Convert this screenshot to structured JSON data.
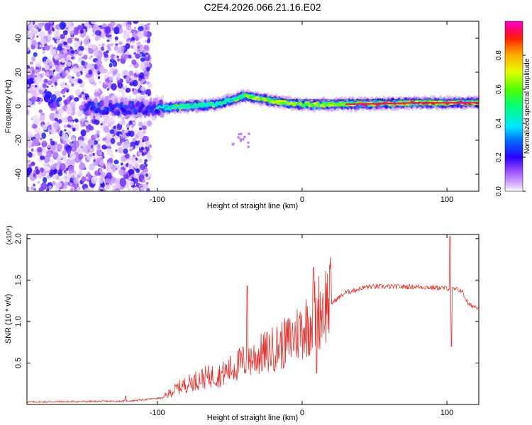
{
  "title": "C2E4.2026.066.21.16.E02",
  "chart_data": [
    {
      "type": "heatmap",
      "name": "spectrogram",
      "xlabel": "Height of straight line (km)",
      "ylabel": "Frequency (Hz)",
      "xlim": [
        -190,
        122
      ],
      "ylim": [
        -50,
        50
      ],
      "xticks": [
        -100,
        0,
        100
      ],
      "xtick_labels": [
        "-100",
        "0",
        "100"
      ],
      "yticks": [
        -40,
        -20,
        0,
        20,
        40
      ],
      "ytick_labels": [
        "-40",
        "-20",
        "0",
        "20",
        "40"
      ],
      "colorbar": {
        "label": "Normalized spectral amplitude",
        "ticks": [
          0.0,
          0.2,
          0.4,
          0.6,
          0.8
        ],
        "tick_labels": [
          "0.0",
          "0.2",
          "0.4",
          "0.6",
          "0.8"
        ],
        "range": [
          0,
          1
        ],
        "colormap": [
          "#ffffff",
          "#b57cff",
          "#6f00ff",
          "#1010ff",
          "#00b4ff",
          "#00ffc8",
          "#00ff3c",
          "#a0ff00",
          "#ffff00",
          "#ffa000",
          "#ff2000",
          "#ff00c8",
          "#ffffff"
        ]
      },
      "ridge": {
        "description_x": [
          -100,
          -80,
          -60,
          -40,
          -20,
          0,
          20,
          50,
          80,
          100,
          122
        ],
        "frequency_y": [
          -1,
          0,
          1,
          6,
          3,
          1,
          1,
          1.5,
          2,
          2,
          2
        ]
      }
    },
    {
      "type": "line",
      "name": "snr",
      "xlabel": "Height of straight line (km)",
      "ylabel": "SNR (10 * v/v)",
      "scale_label": "(x10⁴)",
      "xlim": [
        -190,
        122
      ],
      "ylim": [
        0,
        2.05
      ],
      "xticks": [
        -100,
        0,
        100
      ],
      "xtick_labels": [
        "-100",
        "0",
        "100"
      ],
      "yticks": [
        0.5,
        1.0,
        1.5,
        2.0
      ],
      "ytick_labels": [
        "0.5",
        "1.0",
        "1.5",
        "2.0"
      ],
      "color": "#e8302a",
      "spikes": [
        {
          "x": -122,
          "y": 0.1
        },
        {
          "x": -38,
          "y": 1.43
        },
        {
          "x": 8,
          "y": 1.65
        },
        {
          "x": 10,
          "y": 0.38
        },
        {
          "x": 102,
          "y": 2.03
        },
        {
          "x": 103,
          "y": 0.7
        }
      ],
      "envelope_x": [
        -190,
        -120,
        -96,
        -85,
        -70,
        -55,
        -40,
        -25,
        -10,
        5,
        15,
        30,
        45,
        60,
        80,
        100,
        110,
        115,
        122
      ],
      "envelope_y": [
        0.03,
        0.04,
        0.08,
        0.2,
        0.3,
        0.35,
        0.5,
        0.6,
        0.72,
        0.95,
        1.15,
        1.35,
        1.42,
        1.42,
        1.42,
        1.4,
        1.38,
        1.2,
        1.17
      ]
    }
  ]
}
